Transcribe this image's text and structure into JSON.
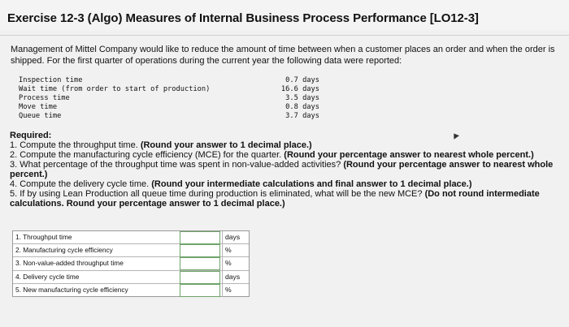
{
  "title": "Exercise 12-3 (Algo) Measures of Internal Business Process Performance [LO12-3]",
  "intro": "Management of Mittel Company would like to reduce the amount of time between when a customer places an order and when the order is shipped. For the first quarter of operations during the current year the following data were reported:",
  "data_rows": [
    {
      "label": "Inspection time",
      "value": "0.7 days"
    },
    {
      "label": "Wait time (from order to start of production)",
      "value": "16.6 days"
    },
    {
      "label": "Process time",
      "value": "3.5 days"
    },
    {
      "label": "Move time",
      "value": "0.8 days"
    },
    {
      "label": "Queue time",
      "value": "3.7 days"
    }
  ],
  "required": {
    "heading": "Required:",
    "q1": "1. Compute the throughput time.",
    "q1_note": "(Round your answer to 1 decimal place.)",
    "q2": "2. Compute the manufacturing cycle efficiency (MCE) for the quarter.",
    "q2_note": "(Round your percentage answer to nearest whole percent.)",
    "q3": "3. What percentage of the throughput time was spent in non-value-added activities?",
    "q3_note": "(Round your percentage answer to nearest whole percent.)",
    "q4": "4. Compute the delivery cycle time.",
    "q4_note": "(Round your intermediate calculations and final answer to 1 decimal place.)",
    "q5": "5. If by using Lean Production all queue time during production is eliminated, what will be the new MCE?",
    "q5_note": "(Do not round intermediate calculations. Round your percentage answer to 1 decimal place.)"
  },
  "answers": [
    {
      "label": "1. Throughput time",
      "value": "",
      "unit": "days"
    },
    {
      "label": "2. Manufacturing cycle efficiency",
      "value": "",
      "unit": "%"
    },
    {
      "label": "3. Non-value-added throughput time",
      "value": "",
      "unit": "%"
    },
    {
      "label": "4. Delivery cycle time",
      "value": "",
      "unit": "days"
    },
    {
      "label": "5. New manufacturing cycle efficiency",
      "value": "",
      "unit": "%"
    }
  ]
}
